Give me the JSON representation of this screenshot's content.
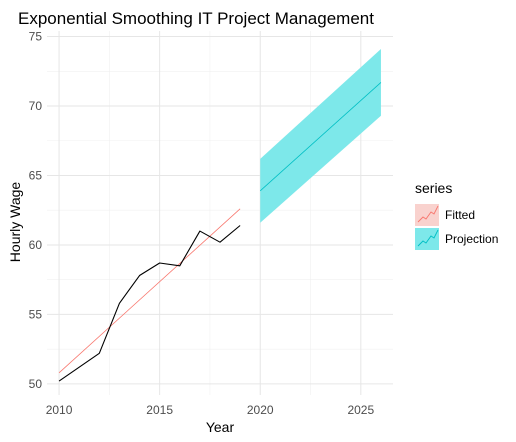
{
  "chart_data": {
    "type": "line",
    "title": "Exponential Smoothing IT Project Management",
    "xlabel": "Year",
    "ylabel": "Hourly Wage",
    "xlim": [
      2009.4,
      2026.6
    ],
    "ylim": [
      49.2,
      75.4
    ],
    "x_ticks": [
      2010,
      2015,
      2020,
      2025
    ],
    "y_ticks": [
      50,
      55,
      60,
      65,
      70,
      75
    ],
    "grid": true,
    "legend": {
      "title": "series",
      "position": "right",
      "entries": [
        {
          "label": "Fitted",
          "color": "#F8766D"
        },
        {
          "label": "Projection",
          "color": "#00BFC4"
        }
      ]
    },
    "actual": {
      "color": "#000000",
      "x": [
        2010,
        2011,
        2012,
        2013,
        2014,
        2015,
        2016,
        2017,
        2018,
        2019
      ],
      "y": [
        50.2,
        51.2,
        52.2,
        55.8,
        57.8,
        58.7,
        58.5,
        61.0,
        60.2,
        61.4
      ]
    },
    "fitted": {
      "name": "Fitted",
      "color": "#F8766D",
      "x": [
        2010,
        2019
      ],
      "y": [
        50.8,
        62.6
      ]
    },
    "projection": {
      "name": "Projection",
      "color": "#00BFC4",
      "band_color": "#7DE8EA",
      "x": [
        2020,
        2026
      ],
      "y": [
        63.9,
        71.7
      ],
      "lower": [
        61.6,
        69.3
      ],
      "upper": [
        66.2,
        74.1
      ]
    }
  }
}
